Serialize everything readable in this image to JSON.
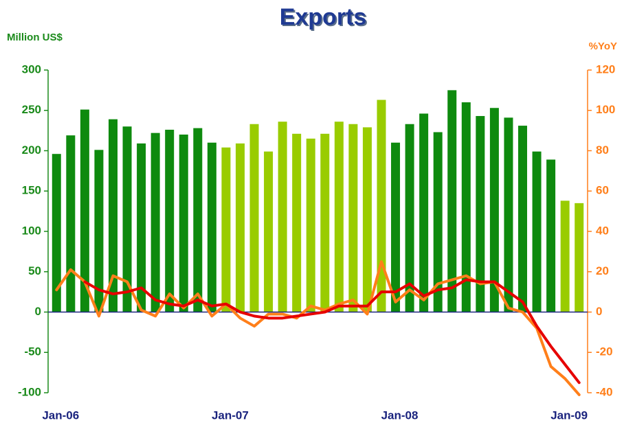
{
  "chart_data": {
    "type": "bar",
    "title": "Exports",
    "y_label": "Million US$",
    "y2_label": "%YoY",
    "categories": [
      "Jan-06",
      null,
      null,
      null,
      null,
      null,
      null,
      null,
      null,
      null,
      null,
      null,
      "Jan-07",
      null,
      null,
      null,
      null,
      null,
      null,
      null,
      null,
      null,
      null,
      null,
      "Jan-08",
      null,
      null,
      null,
      null,
      null,
      null,
      null,
      null,
      null,
      null,
      null,
      "Jan-09",
      null
    ],
    "series": [
      {
        "type": "bar",
        "colors": [
          "#0e8a0e",
          "#0e8a0e",
          "#0e8a0e",
          "#0e8a0e",
          "#0e8a0e",
          "#0e8a0e",
          "#0e8a0e",
          "#0e8a0e",
          "#0e8a0e",
          "#0e8a0e",
          "#0e8a0e",
          "#0e8a0e",
          "#99cc00",
          "#99cc00",
          "#99cc00",
          "#99cc00",
          "#99cc00",
          "#99cc00",
          "#99cc00",
          "#99cc00",
          "#99cc00",
          "#99cc00",
          "#99cc00",
          "#99cc00",
          "#0e8a0e",
          "#0e8a0e",
          "#0e8a0e",
          "#0e8a0e",
          "#0e8a0e",
          "#0e8a0e",
          "#0e8a0e",
          "#0e8a0e",
          "#0e8a0e",
          "#0e8a0e",
          "#0e8a0e",
          "#0e8a0e",
          "#99cc00",
          "#99cc00"
        ],
        "values": [
          196,
          219,
          251,
          201,
          239,
          230,
          209,
          222,
          226,
          220,
          228,
          210,
          204,
          209,
          233,
          199,
          236,
          221,
          215,
          221,
          236,
          233,
          229,
          263,
          210,
          233,
          246,
          223,
          275,
          260,
          243,
          253,
          241,
          231,
          199,
          189,
          138,
          135
        ]
      },
      {
        "type": "line",
        "axis": "y2",
        "color": "#ff7f1a",
        "values": [
          11,
          21,
          15,
          -2,
          18,
          15,
          1,
          -2,
          9,
          2,
          9,
          -2,
          4,
          -3,
          -7,
          -1,
          -1,
          -3,
          3,
          1,
          4,
          6,
          -1,
          25,
          5,
          11,
          6,
          14,
          16,
          18,
          14,
          15,
          2,
          0,
          -8,
          -27,
          -33,
          -41
        ]
      },
      {
        "type": "line",
        "axis": "y2",
        "color": "#e60000",
        "values": [
          null,
          null,
          15,
          11,
          9,
          10,
          12,
          6,
          4,
          3,
          6,
          3,
          4,
          0,
          -2,
          -3,
          -3,
          -2,
          -1,
          0,
          3,
          3,
          3,
          10,
          10,
          14,
          8,
          11,
          12,
          16,
          15,
          15,
          10,
          5,
          -7,
          -17,
          -26,
          -35
        ]
      }
    ],
    "ylim": [
      -100,
      300
    ],
    "yticks": [
      -100,
      -50,
      0,
      50,
      100,
      150,
      200,
      250,
      300
    ],
    "y2lim": [
      -40,
      120
    ],
    "y2ticks": [
      -40,
      -20,
      0,
      20,
      40,
      60,
      80,
      100,
      120
    ]
  }
}
